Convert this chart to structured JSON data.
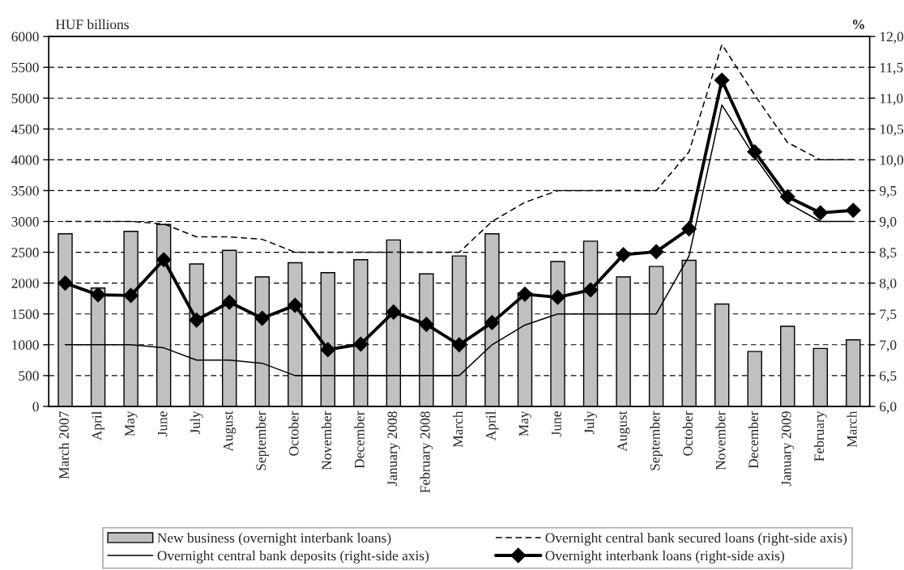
{
  "chart_data": {
    "type": "bar",
    "categories": [
      "March 2007",
      "April",
      "May",
      "June",
      "July",
      "August",
      "September",
      "October",
      "November",
      "December",
      "January 2008",
      "February 2008",
      "March",
      "April",
      "May",
      "June",
      "July",
      "August",
      "September",
      "October",
      "November",
      "December",
      "January 2009",
      "February",
      "March"
    ],
    "series": [
      {
        "name": "New business (overnight interbank loans)",
        "color": "#c0c0c0",
        "values": [
          2800,
          1920,
          2840,
          2950,
          2310,
          2530,
          2100,
          2330,
          2170,
          2380,
          2700,
          2150,
          2440,
          2800,
          1840,
          2350,
          2680,
          2100,
          2270,
          2370,
          1660,
          890,
          1300,
          940,
          1080
        ]
      },
      {
        "name": "Overnight central bank secured loans (right-side axis)",
        "type": "line",
        "axis": "y2",
        "color": "#000000",
        "line_style": "dashed",
        "marker": "none",
        "values": [
          9.0,
          9.0,
          9.0,
          8.96,
          8.75,
          8.75,
          8.71,
          8.5,
          8.5,
          8.5,
          8.5,
          8.5,
          8.5,
          9.0,
          9.31,
          9.5,
          9.5,
          9.5,
          9.5,
          10.13,
          11.87,
          11.05,
          10.28,
          10.0,
          10.0
        ]
      },
      {
        "name": "Overnight central bank deposits (right-side axis)",
        "type": "line",
        "axis": "y2",
        "color": "#000000",
        "line_style": "solid",
        "marker": "none",
        "values": [
          7.0,
          7.0,
          7.0,
          6.95,
          6.75,
          6.75,
          6.7,
          6.5,
          6.5,
          6.5,
          6.5,
          6.5,
          6.5,
          7.0,
          7.32,
          7.5,
          7.5,
          7.5,
          7.5,
          8.44,
          10.89,
          10.05,
          9.3,
          9.0,
          9.0
        ]
      },
      {
        "name": "Overnight interbank loans (right-side axis)",
        "type": "line",
        "axis": "y2",
        "color": "#000000",
        "line_style": "solid",
        "marker": "diamond",
        "values": [
          8.0,
          7.81,
          7.8,
          8.38,
          7.4,
          7.69,
          7.43,
          7.64,
          6.92,
          7.01,
          7.53,
          7.33,
          7.0,
          7.36,
          7.82,
          7.77,
          7.89,
          8.46,
          8.51,
          8.88,
          11.29,
          10.13,
          9.4,
          9.14,
          9.18
        ]
      }
    ],
    "ylabel": "HUF billions",
    "y2label": "%",
    "ylim": [
      0,
      6000
    ],
    "yticks": [
      0,
      500,
      1000,
      1500,
      2000,
      2500,
      3000,
      3500,
      4000,
      4500,
      5000,
      5500,
      6000
    ],
    "y2lim": [
      6,
      12
    ],
    "y2ticks": [
      {
        "value": 6,
        "label": "6,0"
      },
      {
        "value": 6.5,
        "label": "6,5"
      },
      {
        "value": 7,
        "label": "7,0"
      },
      {
        "value": 7.5,
        "label": "7,5"
      },
      {
        "value": 8,
        "label": "8,0"
      },
      {
        "value": 8.5,
        "label": "8,5"
      },
      {
        "value": 9,
        "label": "9,0"
      },
      {
        "value": 9.5,
        "label": "9,5"
      },
      {
        "value": 10,
        "label": "10,0"
      },
      {
        "value": 10.5,
        "label": "10,5"
      },
      {
        "value": 11,
        "label": "11,0"
      },
      {
        "value": 11.5,
        "label": "11,5"
      },
      {
        "value": 12,
        "label": "12,0"
      }
    ],
    "grid": "y",
    "legend": "bottom"
  }
}
